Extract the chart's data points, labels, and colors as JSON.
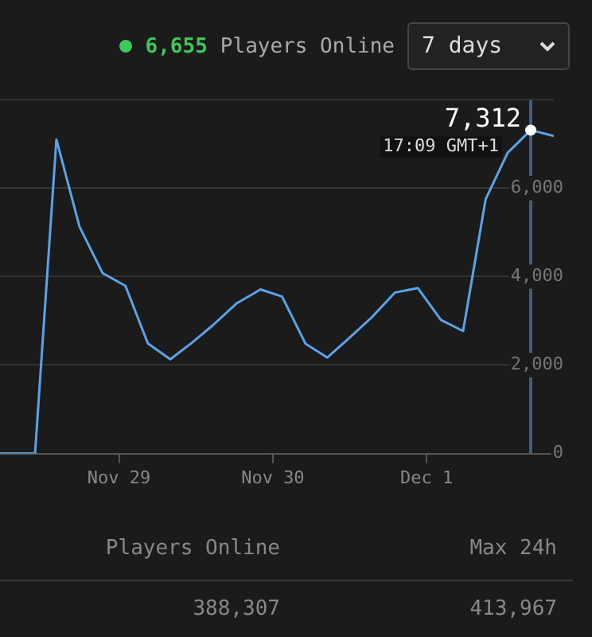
{
  "chart_data": {
    "type": "line",
    "x": [
      "--11-28T05:26",
      "--11-28T10:54",
      "--11-28T14:14",
      "--11-28T17:50",
      "--11-28T21:26",
      "--11-29T01:00",
      "--11-29T04:30",
      "--11-29T08:00",
      "--11-29T11:26",
      "--11-29T14:38",
      "--11-29T18:24",
      "--11-29T22:05",
      "--11-30T01:26",
      "--11-30T05:07",
      "--11-30T08:29",
      "--11-30T11:50",
      "--11-30T15:26",
      "--11-30T19:02",
      "--11-30T22:38",
      "--12-01T02:14",
      "--12-01T05:41",
      "--12-01T09:12",
      "--12-01T12:38",
      "--12-01T16:14",
      "--12-01T19:50"
    ],
    "series": [
      {
        "color": "#5ba3e8",
        "values": [
          0,
          0,
          7100,
          5130,
          4080,
          3790,
          2490,
          2130,
          2510,
          2900,
          3400,
          3710,
          3550,
          2480,
          2170,
          2600,
          3080,
          3640,
          3740,
          3020,
          2770,
          5750,
          6800,
          7312,
          7180
        ]
      }
    ],
    "xlim": [
      "--11-28T05:26",
      "--12-01T19:50"
    ],
    "xticks": [
      {
        "value": "--11-29",
        "label": "Nov 29"
      },
      {
        "value": "--11-30",
        "label": "Nov 30"
      },
      {
        "value": "--12-01",
        "label": "Dec 1"
      }
    ],
    "ylim": [
      0,
      8000
    ],
    "yticks": [
      0,
      {
        "value": 2000,
        "label": "2,000"
      },
      {
        "value": 4000,
        "label": "4,000"
      },
      {
        "value": 6000,
        "label": "6,000"
      },
      {
        "value": 8000,
        "label": null
      }
    ],
    "grid": "y",
    "legend": false,
    "marker": "none",
    "line_style": "solid",
    "ref_lines": [
      {
        "axis": "x",
        "value": "--12-01T16:14",
        "color": "#3d5f80"
      }
    ],
    "annotations": [
      {
        "text": "7,312",
        "x": "--12-01T16:14",
        "y": 7312
      },
      {
        "text": "17:09 GMT+1",
        "x": "--12-01T16:14",
        "y": 7312
      },
      "6,655",
      "Players Online",
      "7 days",
      "Players Online",
      "Max 24h",
      "388,307",
      "413,967"
    ]
  }
}
